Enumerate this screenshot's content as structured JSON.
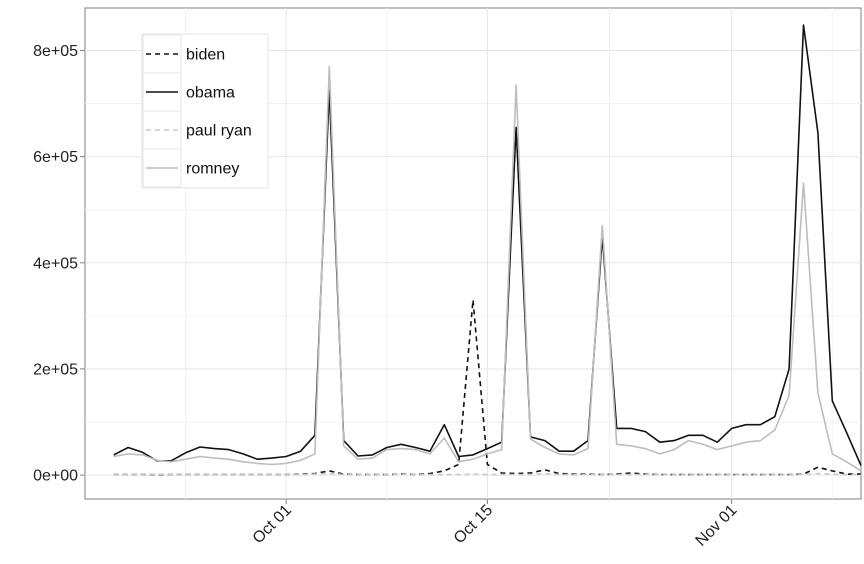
{
  "chart_data": {
    "type": "line",
    "title": "",
    "xlabel": "",
    "ylabel": "",
    "x": [
      "2012-09-19",
      "2012-09-20",
      "2012-09-21",
      "2012-09-22",
      "2012-09-23",
      "2012-09-24",
      "2012-09-25",
      "2012-09-26",
      "2012-09-27",
      "2012-09-28",
      "2012-09-29",
      "2012-09-30",
      "2012-10-01",
      "2012-10-02",
      "2012-10-03",
      "2012-10-04",
      "2012-10-05",
      "2012-10-06",
      "2012-10-07",
      "2012-10-08",
      "2012-10-09",
      "2012-10-10",
      "2012-10-11",
      "2012-10-12",
      "2012-10-13",
      "2012-10-14",
      "2012-10-15",
      "2012-10-16",
      "2012-10-17",
      "2012-10-18",
      "2012-10-19",
      "2012-10-20",
      "2012-10-21",
      "2012-10-22",
      "2012-10-23",
      "2012-10-24",
      "2012-10-25",
      "2012-10-26",
      "2012-10-27",
      "2012-10-28",
      "2012-10-29",
      "2012-10-30",
      "2012-10-31",
      "2012-11-01",
      "2012-11-02",
      "2012-11-03",
      "2012-11-04",
      "2012-11-05",
      "2012-11-06",
      "2012-11-07",
      "2012-11-08",
      "2012-11-09",
      "2012-11-10"
    ],
    "xlim": [
      "2012-09-17",
      "2012-11-10"
    ],
    "ylim": [
      -45000,
      880000
    ],
    "x_ticks": [
      {
        "date": "2012-10-01",
        "label": "Oct 01"
      },
      {
        "date": "2012-10-15",
        "label": "Oct 15"
      },
      {
        "date": "2012-11-01",
        "label": "Nov 01"
      }
    ],
    "y_ticks": [
      {
        "value": 0,
        "label": "0e+00"
      },
      {
        "value": 200000,
        "label": "2e+05"
      },
      {
        "value": 400000,
        "label": "4e+05"
      },
      {
        "value": 600000,
        "label": "6e+05"
      },
      {
        "value": 800000,
        "label": "8e+05"
      }
    ],
    "grid": true,
    "legend_position": "top-left",
    "series": [
      {
        "name": "biden",
        "color": "#111111",
        "dash": "dashed",
        "values": [
          1000,
          1000,
          1000,
          1000,
          1000,
          1000,
          1000,
          1000,
          1000,
          1000,
          1000,
          1000,
          1000,
          2000,
          3000,
          8000,
          2000,
          1000,
          1000,
          1000,
          2000,
          1000,
          3000,
          8000,
          20000,
          330000,
          20000,
          4000,
          3000,
          4000,
          10000,
          3000,
          2000,
          2000,
          1000,
          2000,
          4000,
          2000,
          1000,
          1000,
          1000,
          1000,
          1000,
          1000,
          1000,
          1000,
          1000,
          1000,
          2000,
          15000,
          8000,
          2000,
          2000
        ]
      },
      {
        "name": "obama",
        "color": "#111111",
        "dash": "solid",
        "values": [
          38000,
          52000,
          43000,
          27000,
          27000,
          42000,
          53000,
          50000,
          48000,
          40000,
          30000,
          32000,
          35000,
          45000,
          75000,
          725000,
          65000,
          36000,
          38000,
          52000,
          58000,
          52000,
          45000,
          95000,
          35000,
          38000,
          50000,
          62000,
          655000,
          72000,
          65000,
          45000,
          45000,
          65000,
          450000,
          88000,
          88000,
          82000,
          62000,
          65000,
          75000,
          75000,
          62000,
          88000,
          95000,
          95000,
          110000,
          200000,
          848000,
          645000,
          140000,
          80000,
          18000
        ]
      },
      {
        "name": "paul ryan",
        "color": "#c8c8c8",
        "dash": "dashed",
        "values": [
          1000,
          1000,
          1000,
          2000,
          1000,
          1000,
          1000,
          1000,
          1000,
          1000,
          1000,
          1000,
          1000,
          1000,
          2000,
          3000,
          1000,
          1000,
          1000,
          1000,
          1000,
          1000,
          1000,
          1000,
          1000,
          2000,
          1000,
          1000,
          1000,
          1000,
          3000,
          1000,
          1000,
          1000,
          1000,
          1000,
          1000,
          1000,
          1000,
          1000,
          1000,
          1000,
          1000,
          1000,
          1000,
          1000,
          1000,
          1000,
          1000,
          3000,
          2000,
          1000,
          1000
        ]
      },
      {
        "name": "romney",
        "color": "#bdbdbd",
        "dash": "solid",
        "values": [
          35000,
          40000,
          38000,
          28000,
          25000,
          30000,
          35000,
          32000,
          30000,
          25000,
          22000,
          20000,
          22000,
          28000,
          40000,
          770000,
          55000,
          30000,
          32000,
          48000,
          50000,
          48000,
          40000,
          70000,
          25000,
          30000,
          40000,
          48000,
          735000,
          68000,
          52000,
          40000,
          38000,
          50000,
          470000,
          58000,
          55000,
          50000,
          40000,
          48000,
          65000,
          58000,
          48000,
          55000,
          62000,
          65000,
          85000,
          150000,
          550000,
          155000,
          40000,
          25000,
          8000
        ]
      }
    ]
  }
}
